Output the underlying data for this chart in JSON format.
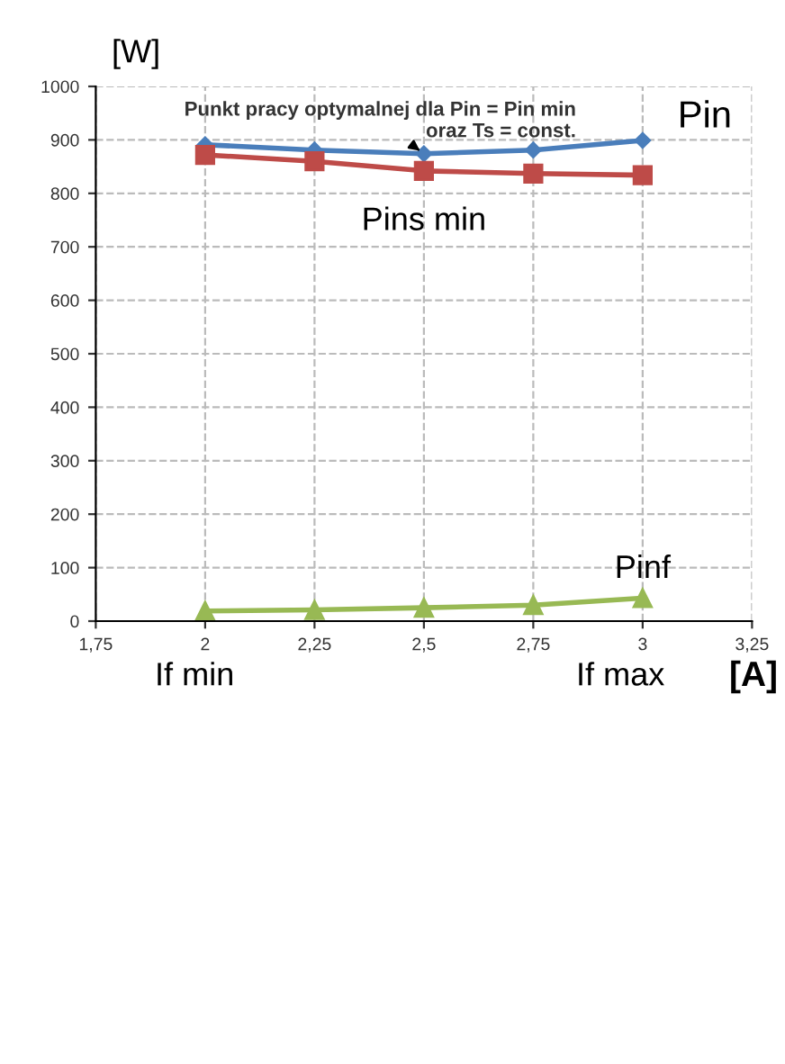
{
  "chart_data": {
    "type": "line",
    "xlabel": "[A]",
    "ylabel": "[W]",
    "x": [
      2,
      2.25,
      2.5,
      2.75,
      3
    ],
    "series": [
      {
        "name": "Pin",
        "color": "#4a7ebb",
        "marker": "diamond",
        "values": [
          891,
          881,
          874,
          881,
          899
        ]
      },
      {
        "name": "Pins min",
        "color": "#be4b48",
        "marker": "square",
        "values": [
          872,
          860,
          842,
          837,
          834
        ]
      },
      {
        "name": "Pinf",
        "color": "#98b954",
        "marker": "triangle",
        "values": [
          19,
          21,
          25,
          30,
          43
        ]
      }
    ],
    "xlim": [
      1.75,
      3.25
    ],
    "xticks": [
      {
        "value": 1.75,
        "label": "1,75"
      },
      2,
      {
        "value": 2.25,
        "label": "2,25"
      },
      {
        "value": 2.5,
        "label": "2,5"
      },
      {
        "value": 2.75,
        "label": "2,75"
      },
      3,
      {
        "value": 3.25,
        "label": "3,25"
      }
    ],
    "ylim": [
      0,
      1000
    ],
    "yticks": [
      0,
      100,
      200,
      300,
      400,
      500,
      600,
      700,
      800,
      900,
      1000
    ],
    "grid": true,
    "legend": false,
    "line_style": "solid",
    "annotations": [
      {
        "text": "Punkt pracy optymalnej dla Pin = Pin min\noraz Ts = const.",
        "x": 2.5,
        "y": 874
      },
      "If min",
      "If max"
    ]
  }
}
